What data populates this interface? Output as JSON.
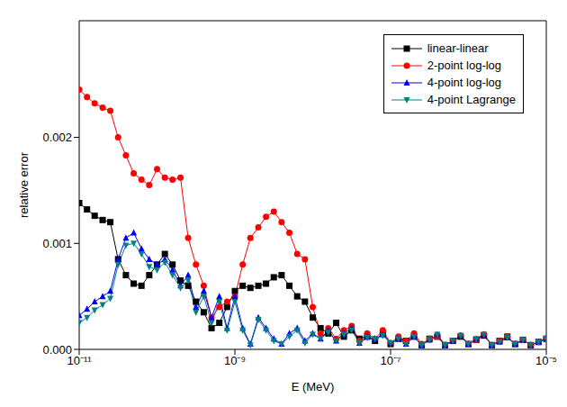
{
  "chart_data": {
    "type": "line",
    "x_label": "E (MeV)",
    "y_label": "relative error",
    "log": "x",
    "grid": false,
    "legend": "upper right",
    "xlim": [
      1e-11,
      1e-05
    ],
    "xticks": [
      {
        "value": 1e-11,
        "label": "10⁻¹¹"
      },
      {
        "value": 1e-09,
        "label": "10⁻⁹"
      },
      {
        "value": 1e-07,
        "label": "10⁻⁷"
      },
      {
        "value": 1e-05,
        "label": "10⁻⁵"
      }
    ],
    "ylim": [
      0,
      0.0031
    ],
    "yticks": [
      {
        "value": 0,
        "label": "0.000"
      },
      0.001,
      0.002
    ],
    "x": [
      1e-11,
      1.26e-11,
      1.58e-11,
      2e-11,
      2.51e-11,
      3.16e-11,
      3.98e-11,
      5.01e-11,
      6.31e-11,
      7.94e-11,
      1e-10,
      1.26e-10,
      1.58e-10,
      2e-10,
      2.51e-10,
      3.16e-10,
      3.98e-10,
      5.01e-10,
      6.31e-10,
      7.94e-10,
      1e-09,
      1.26e-09,
      1.58e-09,
      2e-09,
      2.51e-09,
      3.16e-09,
      3.98e-09,
      5.01e-09,
      6.31e-09,
      7.94e-09,
      1e-08,
      1.26e-08,
      1.58e-08,
      2e-08,
      2.51e-08,
      3.16e-08,
      3.98e-08,
      5.01e-08,
      6.31e-08,
      7.94e-08,
      1e-07,
      1.26e-07,
      1.58e-07,
      2e-07,
      2.51e-07,
      3.16e-07,
      3.98e-07,
      5.01e-07,
      6.31e-07,
      7.94e-07,
      1e-06,
      1.26e-06,
      1.58e-06,
      2e-06,
      2.51e-06,
      3.16e-06,
      3.98e-06,
      5.01e-06,
      6.31e-06,
      7.94e-06,
      1e-05
    ],
    "series": [
      {
        "name": "linear-linear",
        "color": "#000000",
        "marker": "square",
        "values": [
          0.00138,
          0.00132,
          0.00126,
          0.00122,
          0.0012,
          0.00085,
          0.0007,
          0.00062,
          0.0006,
          0.0007,
          0.0008,
          0.0009,
          0.0008,
          0.00065,
          0.0006,
          0.00045,
          0.00035,
          0.0002,
          0.00025,
          0.0004,
          0.00055,
          0.0006,
          0.00058,
          0.0006,
          0.00062,
          0.00068,
          0.0007,
          0.0006,
          0.0005,
          0.00045,
          0.0003,
          0.0002,
          0.00015,
          0.00025,
          0.00012,
          0.00018,
          0.0001,
          0.00012,
          8e-05,
          0.00015,
          5e-05,
          0.0001,
          8e-05,
          0.00012,
          4e-05,
          0.0001,
          0.00012,
          4e-05,
          8e-05,
          0.00012,
          5e-05,
          9e-05,
          0.00013,
          4e-05,
          8e-05,
          0.00012,
          5e-05,
          9e-05,
          4e-05,
          7e-05,
          0.0001
        ]
      },
      {
        "name": "2-point log-log",
        "color": "#ff0000",
        "marker": "circle",
        "values": [
          0.00245,
          0.00238,
          0.00232,
          0.00228,
          0.00225,
          0.002,
          0.00183,
          0.00166,
          0.0016,
          0.00155,
          0.0017,
          0.00162,
          0.0016,
          0.00162,
          0.00105,
          0.0008,
          0.0006,
          0.0003,
          0.0004,
          0.00045,
          0.0005,
          0.0008,
          0.00105,
          0.00115,
          0.00125,
          0.0013,
          0.0012,
          0.0011,
          0.0009,
          0.00085,
          0.0004,
          0.00015,
          0.0002,
          0.0001,
          0.00018,
          0.00022,
          8e-05,
          0.00015,
          0.0001,
          0.00018,
          6e-05,
          0.00012,
          8e-05,
          0.00015,
          5e-05,
          0.0001,
          0.00012,
          4e-05,
          8e-05,
          0.00013,
          5e-05,
          9e-05,
          0.00014,
          4e-05,
          8e-05,
          0.00012,
          5e-05,
          9e-05,
          4e-05,
          7e-05,
          0.0001
        ]
      },
      {
        "name": "4-point log-log",
        "color": "#0000ff",
        "marker": "triangle",
        "values": [
          0.00032,
          0.00038,
          0.00045,
          0.0005,
          0.00055,
          0.00085,
          0.00105,
          0.0011,
          0.00095,
          0.00085,
          0.0008,
          0.00085,
          0.00075,
          0.0006,
          0.0007,
          0.0004,
          0.00055,
          0.0003,
          0.0005,
          0.0002,
          0.0005,
          0.0002,
          5e-05,
          0.0003,
          0.0002,
          0.0001,
          5e-05,
          0.00015,
          0.0002,
          8e-05,
          0.00015,
          0.0001,
          0.00018,
          8e-05,
          0.00015,
          0.0002,
          6e-05,
          0.00012,
          0.0001,
          0.00014,
          6e-05,
          0.0001,
          5e-05,
          0.00012,
          4e-05,
          9e-05,
          0.00014,
          4e-05,
          8e-05,
          0.00013,
          5e-05,
          0.0001,
          0.00014,
          4e-05,
          7e-05,
          0.00011,
          5e-05,
          9e-05,
          4e-05,
          7e-05,
          0.0001
        ]
      },
      {
        "name": "4-point Lagrange",
        "color": "#008080",
        "marker": "triangle-down",
        "values": [
          0.00025,
          0.0003,
          0.00037,
          0.00042,
          0.00048,
          0.0008,
          0.00098,
          0.001,
          0.0009,
          0.00078,
          0.00075,
          0.00082,
          0.0007,
          0.00058,
          0.00065,
          0.00035,
          0.0005,
          0.00025,
          0.00045,
          0.00018,
          0.00045,
          0.00018,
          4e-05,
          0.00028,
          0.00018,
          8e-05,
          5e-05,
          0.00012,
          0.00018,
          6e-05,
          0.00014,
          0.0001,
          0.00016,
          8e-05,
          0.00014,
          0.00018,
          6e-05,
          0.00011,
          0.0001,
          0.00013,
          6e-05,
          0.0001,
          5e-05,
          0.00012,
          4e-05,
          9e-05,
          0.00014,
          4e-05,
          8e-05,
          0.00013,
          5e-05,
          0.0001,
          0.00014,
          4e-05,
          7e-05,
          0.00011,
          5e-05,
          9e-05,
          4e-05,
          7e-05,
          0.0001
        ]
      }
    ]
  }
}
